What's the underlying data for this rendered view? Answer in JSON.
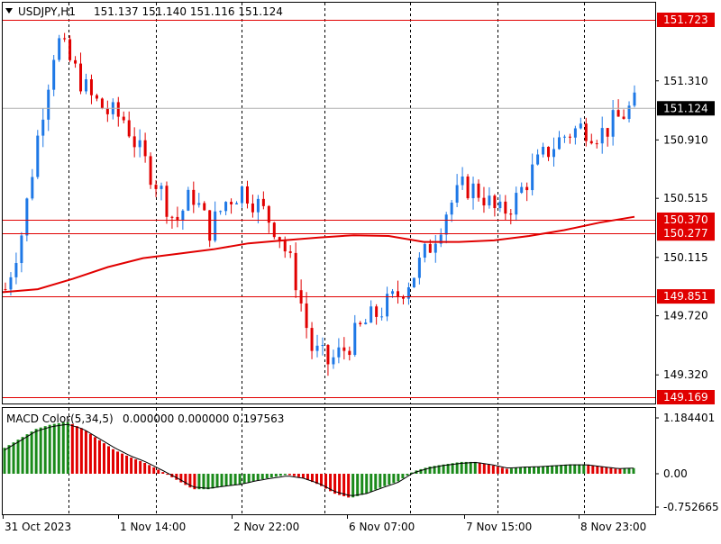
{
  "header": {
    "symbol": "USDJPY,H1",
    "ohlc": "151.137 151.140 151.116 151.124"
  },
  "macd_header": {
    "name": "MACD Color(5,34,5)",
    "values": "0.000000 0.000000 0.197563"
  },
  "colors": {
    "bull": "#1e78e6",
    "bear": "#e10000",
    "level_line": "#e10000",
    "ma_line": "#e10000",
    "hist_up": "#1a8a1a",
    "hist_down": "#e10000",
    "signal_line": "#000000",
    "grid": "#000000",
    "price_tag_bg": "#000000",
    "level_tag_bg": "#e10000"
  },
  "chart_data": [
    {
      "type": "candlestick",
      "symbol": "USDJPY",
      "timeframe": "H1",
      "ylim": [
        149.169,
        151.85
      ],
      "y_ticks": [
        "151.310",
        "150.910",
        "150.515",
        "150.115",
        "149.720",
        "149.320"
      ],
      "x_tick_labels": [
        "31 Oct 2023",
        "1 Nov 14:00",
        "2 Nov 22:00",
        "6 Nov 07:00",
        "7 Nov 15:00",
        "8 Nov 23:00"
      ],
      "horizontal_levels": [
        "151.723",
        "150.370",
        "150.277",
        "149.851",
        "149.169"
      ],
      "current_price": "151.124",
      "moving_average_points": [
        149.88,
        149.9,
        149.97,
        150.05,
        150.11,
        150.14,
        150.17,
        150.21,
        150.23,
        150.25,
        150.265,
        150.26,
        150.22,
        150.22,
        150.23,
        150.26,
        150.3,
        150.35,
        150.39
      ],
      "close_path": [
        149.9,
        150.3,
        151.0,
        151.6,
        151.4,
        151.2,
        151.1,
        151.05,
        150.8,
        150.6,
        150.35,
        150.55,
        150.3,
        150.5,
        150.58,
        150.45,
        150.3,
        150.0,
        149.5,
        149.4,
        149.5,
        149.65,
        149.75,
        149.85,
        150.0,
        150.2,
        150.45,
        150.6,
        150.55,
        150.4,
        150.5,
        150.7,
        150.85,
        150.95,
        151.0,
        150.95,
        151.05,
        151.15
      ]
    },
    {
      "type": "bar",
      "indicator": "MACD Color(5,34,5)",
      "ylim": [
        -0.752665,
        1.184401
      ],
      "y_ticks": [
        "1.184401",
        "0.00",
        "-0.752665"
      ],
      "series": [
        {
          "name": "MACD",
          "values": [
            0.55,
            0.75,
            0.95,
            1.05,
            1.1,
            0.95,
            0.72,
            0.5,
            0.35,
            0.22,
            0.05,
            -0.15,
            -0.35,
            -0.35,
            -0.28,
            -0.25,
            -0.15,
            -0.08,
            -0.02,
            -0.1,
            -0.25,
            -0.45,
            -0.55,
            -0.45,
            -0.3,
            -0.18,
            0.05,
            0.15,
            0.2,
            0.25,
            0.25,
            0.18,
            0.1,
            0.15,
            0.15,
            0.18,
            0.2,
            0.2,
            0.15,
            0.1,
            0.12
          ]
        },
        {
          "name": "Signal",
          "values": [
            0.5,
            0.7,
            0.9,
            1.0,
            1.05,
            0.95,
            0.75,
            0.55,
            0.38,
            0.25,
            0.08,
            -0.1,
            -0.3,
            -0.33,
            -0.28,
            -0.24,
            -0.16,
            -0.1,
            -0.05,
            -0.1,
            -0.22,
            -0.4,
            -0.5,
            -0.45,
            -0.32,
            -0.2,
            0.02,
            0.12,
            0.18,
            0.22,
            0.24,
            0.19,
            0.12,
            0.14,
            0.15,
            0.17,
            0.19,
            0.19,
            0.15,
            0.11,
            0.12
          ]
        }
      ]
    }
  ]
}
